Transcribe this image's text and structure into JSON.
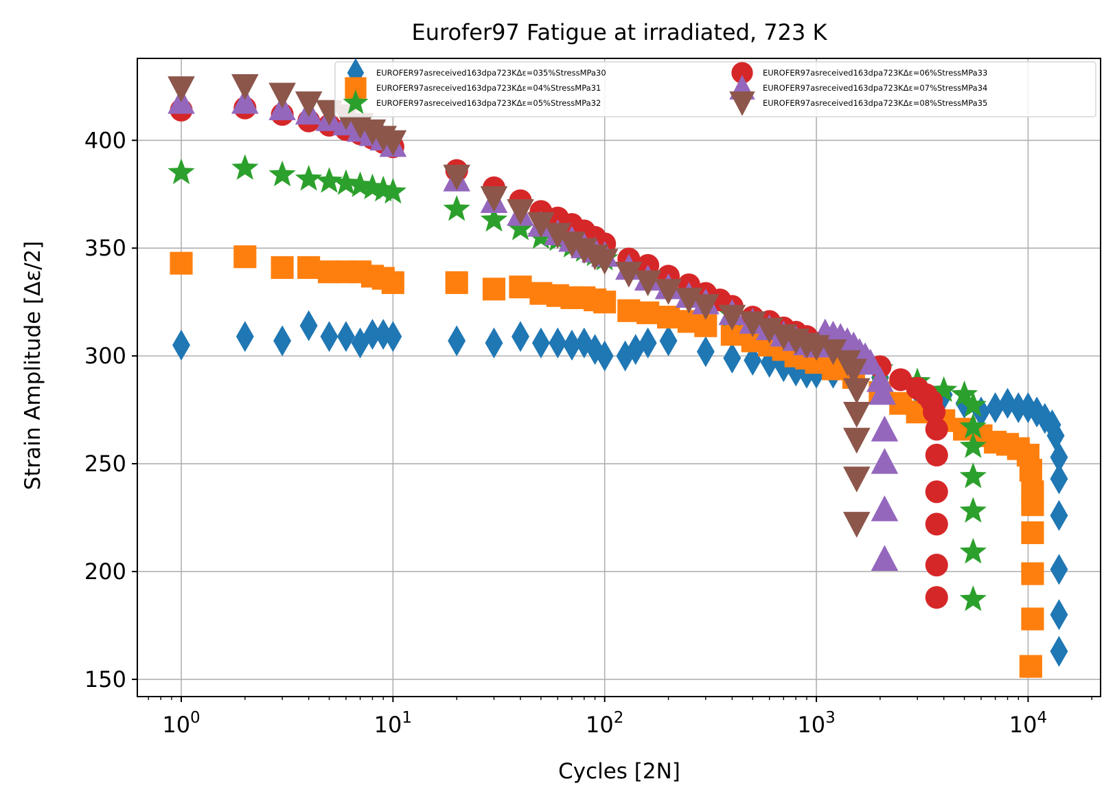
{
  "chart_data": {
    "type": "scatter",
    "title": "Eurofer97 Fatigue at irradiated, 723 K",
    "xlabel": "Cycles [2N]",
    "ylabel": "Strain Amplitude [Δε/2]",
    "xscale": "log",
    "xlim": [
      0.62,
      22000
    ],
    "ylim": [
      142,
      438
    ],
    "grid": true,
    "legend_position": "top-right",
    "x_ticks": [
      {
        "value": 1,
        "base": "10",
        "exp": "0"
      },
      {
        "value": 10,
        "base": "10",
        "exp": "1"
      },
      {
        "value": 100,
        "base": "10",
        "exp": "2"
      },
      {
        "value": 1000,
        "base": "10",
        "exp": "3"
      },
      {
        "value": 10000,
        "base": "10",
        "exp": "4"
      }
    ],
    "y_ticks": [
      150,
      200,
      250,
      300,
      350,
      400
    ],
    "series": [
      {
        "name": "EUROFER97asreceived163dpa723KΔε=035%StressMPa30",
        "marker": "diamond",
        "color": "#1f77b4",
        "points": [
          [
            1,
            305
          ],
          [
            2,
            309
          ],
          [
            3,
            307
          ],
          [
            4,
            314
          ],
          [
            5,
            309
          ],
          [
            6,
            309
          ],
          [
            7,
            306
          ],
          [
            8,
            310
          ],
          [
            9,
            310
          ],
          [
            10,
            309
          ],
          [
            20,
            307
          ],
          [
            30,
            306
          ],
          [
            40,
            309
          ],
          [
            50,
            306
          ],
          [
            60,
            306
          ],
          [
            70,
            305
          ],
          [
            80,
            306
          ],
          [
            90,
            303
          ],
          [
            100,
            300
          ],
          [
            125,
            300
          ],
          [
            140,
            303
          ],
          [
            160,
            306
          ],
          [
            200,
            307
          ],
          [
            300,
            302
          ],
          [
            400,
            299
          ],
          [
            500,
            298
          ],
          [
            600,
            297
          ],
          [
            700,
            295
          ],
          [
            800,
            293
          ],
          [
            900,
            292
          ],
          [
            1000,
            292
          ],
          [
            1200,
            292
          ],
          [
            1500,
            292
          ],
          [
            2000,
            290
          ],
          [
            3000,
            284
          ],
          [
            4000,
            282
          ],
          [
            5000,
            278
          ],
          [
            6000,
            274
          ],
          [
            7000,
            276
          ],
          [
            8000,
            278
          ],
          [
            9000,
            276
          ],
          [
            10000,
            276
          ],
          [
            11000,
            274
          ],
          [
            12000,
            271
          ],
          [
            13000,
            268
          ],
          [
            13500,
            263
          ],
          [
            14000,
            253
          ],
          [
            14000,
            243
          ],
          [
            14000,
            226
          ],
          [
            14000,
            201
          ],
          [
            14000,
            180
          ],
          [
            14000,
            163
          ]
        ]
      },
      {
        "name": "EUROFER97asreceived163dpa723KΔε=04%StressMPa31",
        "marker": "square",
        "color": "#ff7f0e",
        "points": [
          [
            1,
            343
          ],
          [
            2,
            346
          ],
          [
            3,
            341
          ],
          [
            4,
            341
          ],
          [
            5,
            339
          ],
          [
            6,
            339
          ],
          [
            7,
            339
          ],
          [
            8,
            337
          ],
          [
            9,
            336
          ],
          [
            10,
            334
          ],
          [
            20,
            334
          ],
          [
            30,
            331
          ],
          [
            40,
            332
          ],
          [
            50,
            329
          ],
          [
            60,
            328
          ],
          [
            70,
            327
          ],
          [
            80,
            327
          ],
          [
            90,
            326
          ],
          [
            100,
            325
          ],
          [
            130,
            321
          ],
          [
            160,
            320
          ],
          [
            200,
            318
          ],
          [
            250,
            316
          ],
          [
            300,
            314
          ],
          [
            400,
            310
          ],
          [
            500,
            307
          ],
          [
            600,
            305
          ],
          [
            700,
            303
          ],
          [
            800,
            300
          ],
          [
            900,
            299
          ],
          [
            1000,
            297
          ],
          [
            1200,
            294
          ],
          [
            1500,
            290
          ],
          [
            2000,
            283
          ],
          [
            2500,
            278
          ],
          [
            3000,
            274
          ],
          [
            4000,
            270
          ],
          [
            5000,
            266
          ],
          [
            6000,
            263
          ],
          [
            7000,
            260
          ],
          [
            8000,
            259
          ],
          [
            9000,
            257
          ],
          [
            10000,
            254
          ],
          [
            10300,
            247
          ],
          [
            10500,
            237
          ],
          [
            10500,
            231
          ],
          [
            10500,
            218
          ],
          [
            10500,
            199
          ],
          [
            10500,
            178
          ],
          [
            10300,
            156
          ]
        ]
      },
      {
        "name": "EUROFER97asreceived163dpa723KΔε=05%StressMPa32",
        "marker": "star",
        "color": "#2ca02c",
        "points": [
          [
            1,
            385
          ],
          [
            2,
            387
          ],
          [
            3,
            384
          ],
          [
            4,
            382
          ],
          [
            5,
            381
          ],
          [
            6,
            380
          ],
          [
            7,
            379
          ],
          [
            8,
            378
          ],
          [
            9,
            377
          ],
          [
            10,
            376
          ],
          [
            20,
            368
          ],
          [
            30,
            363
          ],
          [
            40,
            359
          ],
          [
            50,
            355
          ],
          [
            60,
            354
          ],
          [
            70,
            351
          ],
          [
            80,
            349
          ],
          [
            90,
            347
          ],
          [
            100,
            345
          ],
          [
            130,
            341
          ],
          [
            160,
            337
          ],
          [
            200,
            333
          ],
          [
            250,
            329
          ],
          [
            300,
            325
          ],
          [
            400,
            319
          ],
          [
            500,
            316
          ],
          [
            600,
            313
          ],
          [
            700,
            310
          ],
          [
            800,
            308
          ],
          [
            900,
            306
          ],
          [
            1000,
            305
          ],
          [
            1500,
            300
          ],
          [
            2000,
            294
          ],
          [
            3000,
            288
          ],
          [
            4000,
            284
          ],
          [
            5000,
            282
          ],
          [
            5500,
            277
          ],
          [
            5500,
            267
          ],
          [
            5500,
            258
          ],
          [
            5500,
            244
          ],
          [
            5500,
            228
          ],
          [
            5500,
            209
          ],
          [
            5500,
            187
          ]
        ]
      },
      {
        "name": "EUROFER97asreceived163dpa723KΔε=06%StressMPa33",
        "marker": "circle",
        "color": "#d62728",
        "points": [
          [
            1,
            414
          ],
          [
            2,
            415
          ],
          [
            3,
            412
          ],
          [
            4,
            409
          ],
          [
            5,
            407
          ],
          [
            6,
            405
          ],
          [
            7,
            403
          ],
          [
            8,
            401
          ],
          [
            9,
            399
          ],
          [
            10,
            397
          ],
          [
            20,
            386
          ],
          [
            30,
            378
          ],
          [
            40,
            372
          ],
          [
            50,
            367
          ],
          [
            60,
            364
          ],
          [
            70,
            361
          ],
          [
            80,
            358
          ],
          [
            90,
            355
          ],
          [
            100,
            352
          ],
          [
            130,
            345
          ],
          [
            160,
            342
          ],
          [
            200,
            337
          ],
          [
            250,
            333
          ],
          [
            300,
            329
          ],
          [
            350,
            326
          ],
          [
            400,
            323
          ],
          [
            500,
            318
          ],
          [
            600,
            316
          ],
          [
            700,
            313
          ],
          [
            800,
            311
          ],
          [
            900,
            309
          ],
          [
            1000,
            306
          ],
          [
            1200,
            305
          ],
          [
            1500,
            299
          ],
          [
            2000,
            295
          ],
          [
            2500,
            289
          ],
          [
            3000,
            285
          ],
          [
            3300,
            282
          ],
          [
            3500,
            279
          ],
          [
            3600,
            274
          ],
          [
            3700,
            266
          ],
          [
            3700,
            254
          ],
          [
            3700,
            237
          ],
          [
            3700,
            222
          ],
          [
            3700,
            203
          ],
          [
            3700,
            188
          ]
        ]
      },
      {
        "name": "EUROFER97asreceived163dpa723KΔε=07%StressMPa34",
        "marker": "triangle-up",
        "color": "#9467bd",
        "points": [
          [
            1,
            418
          ],
          [
            2,
            418
          ],
          [
            3,
            415
          ],
          [
            4,
            413
          ],
          [
            5,
            410
          ],
          [
            6,
            408
          ],
          [
            7,
            405
          ],
          [
            8,
            403
          ],
          [
            9,
            401
          ],
          [
            10,
            398
          ],
          [
            20,
            382
          ],
          [
            30,
            372
          ],
          [
            40,
            366
          ],
          [
            50,
            361
          ],
          [
            60,
            357
          ],
          [
            70,
            354
          ],
          [
            80,
            351
          ],
          [
            90,
            349
          ],
          [
            100,
            347
          ],
          [
            130,
            341
          ],
          [
            160,
            336
          ],
          [
            200,
            332
          ],
          [
            250,
            328
          ],
          [
            300,
            325
          ],
          [
            400,
            320
          ],
          [
            500,
            316
          ],
          [
            600,
            313
          ],
          [
            700,
            310
          ],
          [
            800,
            308
          ],
          [
            900,
            306
          ],
          [
            1000,
            305
          ],
          [
            1100,
            311
          ],
          [
            1200,
            310
          ],
          [
            1300,
            309
          ],
          [
            1400,
            307
          ],
          [
            1500,
            305
          ],
          [
            1600,
            302
          ],
          [
            1700,
            300
          ],
          [
            1800,
            297
          ],
          [
            2000,
            289
          ],
          [
            2050,
            283
          ],
          [
            2100,
            266
          ],
          [
            2100,
            251
          ],
          [
            2100,
            229
          ],
          [
            2100,
            206
          ]
        ]
      },
      {
        "name": "EUROFER97asreceived163dpa723KΔε=08%StressMPa35",
        "marker": "triangle-down",
        "color": "#8c564b",
        "points": [
          [
            1,
            424
          ],
          [
            2,
            425
          ],
          [
            3,
            421
          ],
          [
            4,
            417
          ],
          [
            5,
            413
          ],
          [
            6,
            411
          ],
          [
            7,
            407
          ],
          [
            8,
            404
          ],
          [
            9,
            401
          ],
          [
            10,
            399
          ],
          [
            20,
            383
          ],
          [
            30,
            373
          ],
          [
            40,
            367
          ],
          [
            50,
            361
          ],
          [
            60,
            356
          ],
          [
            70,
            352
          ],
          [
            80,
            349
          ],
          [
            90,
            346
          ],
          [
            100,
            344
          ],
          [
            130,
            338
          ],
          [
            160,
            334
          ],
          [
            200,
            330
          ],
          [
            250,
            326
          ],
          [
            300,
            323
          ],
          [
            400,
            318
          ],
          [
            500,
            315
          ],
          [
            600,
            312
          ],
          [
            700,
            309
          ],
          [
            800,
            307
          ],
          [
            900,
            305
          ],
          [
            1000,
            304
          ],
          [
            1200,
            302
          ],
          [
            1400,
            297
          ],
          [
            1500,
            293
          ],
          [
            1550,
            284
          ],
          [
            1550,
            273
          ],
          [
            1550,
            261
          ],
          [
            1550,
            243
          ],
          [
            1550,
            222
          ]
        ]
      }
    ]
  }
}
